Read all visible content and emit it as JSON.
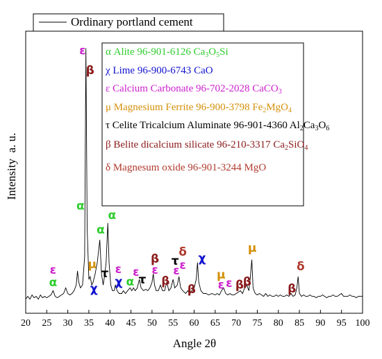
{
  "chart_data": {
    "type": "line",
    "xlabel": "Angle 2θ",
    "ylabel": "Intensity  a. u.",
    "xlim": [
      20,
      100
    ],
    "xticks": [
      20,
      25,
      30,
      35,
      40,
      45,
      50,
      55,
      60,
      65,
      70,
      75,
      80,
      85,
      90,
      95,
      100
    ],
    "ylim": [
      0,
      100
    ],
    "x": [
      20,
      20.5,
      21,
      21.5,
      22,
      22.5,
      23,
      23.5,
      24,
      24.5,
      25,
      25.5,
      26,
      26.5,
      27,
      27.5,
      28,
      28.5,
      29,
      29.5,
      30,
      30.5,
      31,
      31.5,
      32,
      32.3,
      32.6,
      33,
      33.5,
      34,
      34.3,
      34.6,
      35,
      35.3,
      35.7,
      36,
      36.5,
      37,
      37.3,
      37.6,
      38,
      38.4,
      38.8,
      39.1,
      39.5,
      39.8,
      40.2,
      40.6,
      41,
      41.3,
      41.7,
      42.2,
      42.8,
      43.2,
      43.7,
      44.2,
      44.8,
      45.2,
      45.6,
      46,
      46.5,
      47,
      47.4,
      48,
      48.5,
      49,
      49.5,
      50,
      50.3,
      50.6,
      51,
      51.5,
      52,
      52.5,
      53,
      53.5,
      54,
      54.5,
      55,
      55.4,
      56,
      56.4,
      56.8,
      57.3,
      58,
      58.5,
      59,
      59.5,
      60,
      60.5,
      60.8,
      61.1,
      61.6,
      62.2,
      62.8,
      63.5,
      64.2,
      65,
      65.5,
      66,
      66.5,
      67,
      67.5,
      68,
      68.5,
      69,
      69.5,
      70,
      70.5,
      71,
      71.5,
      72,
      72.5,
      73,
      73.3,
      73.7,
      74,
      74.5,
      75,
      75.5,
      76,
      76.5,
      77,
      77.5,
      78,
      78.5,
      79,
      79.5,
      80,
      80.5,
      81,
      81.5,
      82,
      82.5,
      83,
      83.5,
      84,
      84.4,
      84.7,
      85,
      85.5,
      86,
      86.5,
      87,
      87.5,
      88,
      88.5,
      89,
      89.5,
      90,
      90.5,
      91,
      91.5,
      92,
      92.5,
      93,
      93.5,
      94,
      94.5,
      95,
      95.5,
      96,
      96.5,
      97,
      97.5,
      98,
      98.5,
      99,
      99.5,
      100
    ],
    "series": [
      {
        "name": "Ordinary portland cement",
        "color": "#000000",
        "values": [
          5,
          6,
          5,
          6.5,
          5.5,
          6,
          5,
          6.5,
          5.5,
          6,
          5.5,
          6,
          6.5,
          8,
          6,
          5.5,
          6,
          6.5,
          7,
          9,
          7,
          6.5,
          7,
          8,
          10,
          15,
          11,
          9,
          10,
          20,
          94,
          30,
          12,
          13,
          10,
          11,
          14,
          18,
          22,
          26,
          14,
          10,
          14,
          18,
          32,
          18,
          10,
          8,
          8,
          10,
          8,
          7,
          7,
          8,
          7,
          8,
          9,
          8,
          9,
          8,
          9,
          12,
          9,
          8,
          8.5,
          8,
          9,
          11,
          14,
          10,
          8,
          8,
          10,
          8,
          8,
          11,
          8,
          9,
          12,
          9,
          10,
          13,
          9,
          8,
          7,
          8,
          7,
          8,
          9,
          12,
          18,
          11,
          8,
          7,
          7,
          6.5,
          7,
          6.5,
          7,
          6.5,
          8,
          9,
          7,
          6.5,
          7,
          6.5,
          6.5,
          7,
          7.5,
          8,
          7,
          9,
          10,
          8,
          12,
          19,
          9,
          7,
          6.5,
          7,
          6.5,
          6,
          7,
          6,
          6.5,
          6,
          6,
          6.5,
          6,
          6.5,
          6,
          6,
          6.5,
          6,
          7,
          6,
          6.5,
          9,
          13,
          7,
          6,
          6.5,
          6,
          6,
          6.5,
          6,
          6,
          5.5,
          6,
          6,
          6.5,
          6,
          5.5,
          6,
          6,
          6.5,
          6,
          6,
          6.5,
          7,
          6,
          6,
          6,
          6.5,
          6,
          6,
          5.5,
          6,
          6,
          6
        ]
      }
    ],
    "phases": [
      {
        "text": "α Alite 96-901-6126 ",
        "color": "#2ecc2e",
        "formula": [
          {
            "el": "Ca",
            "sub": "3"
          },
          {
            "el": "O",
            "sub": "5"
          },
          {
            "el": "Si"
          }
        ]
      },
      {
        "text": "χ Lime 96-900-6743 ",
        "color": "#1010d0",
        "formula": [
          {
            "el": "CaO"
          }
        ]
      },
      {
        "text": "ε Calcium Carbonate 96-702-2028 ",
        "color": "#cc22cc",
        "formula": [
          {
            "el": "CaCO",
            "sub": "3"
          }
        ]
      },
      {
        "text": "μ Magnesium Ferrite  96-900-3798 ",
        "color": "#d4900a",
        "formula": [
          {
            "el": "Fe",
            "sub": "2"
          },
          {
            "el": "MgO",
            "sub": "4"
          }
        ]
      },
      {
        "text": "τ Celite Tricalcium Aluminate 96-901-4360 ",
        "color": "#000000",
        "formula": [
          {
            "el": "Al",
            "sub": "2"
          },
          {
            "el": "Ca",
            "sub": "3"
          },
          {
            "el": "O",
            "sub": "6"
          }
        ]
      },
      {
        "text": "β Belite dicalcium silicate  96-210-3317  ",
        "color": "#8b1a1a",
        "formula": [
          {
            "el": "Ca",
            "sub": "2"
          },
          {
            "el": "SiO",
            "sub": "4"
          }
        ]
      },
      {
        "text": "δ Magnesum oxide 96-901-3244 MgO",
        "color": "#b03a2e",
        "formula": []
      }
    ],
    "annotations": [
      {
        "text": "ε",
        "x": 26.5,
        "y": 15.2,
        "color": "#cc22cc"
      },
      {
        "text": "α",
        "x": 26.5,
        "y": 10.8,
        "color": "#2ecc2e"
      },
      {
        "text": "ε",
        "x": 33.5,
        "y": 93,
        "color": "#cc22cc"
      },
      {
        "text": "β",
        "x": 35.3,
        "y": 86,
        "color": "#8b1a1a"
      },
      {
        "text": "α",
        "x": 33,
        "y": 38,
        "color": "#2ecc2e"
      },
      {
        "text": "α",
        "x": 37.8,
        "y": 29.5,
        "color": "#2ecc2e"
      },
      {
        "text": "α",
        "x": 40.5,
        "y": 34.6,
        "color": "#2ecc2e"
      },
      {
        "text": "μ",
        "x": 35.8,
        "y": 17.2,
        "color": "#d4900a"
      },
      {
        "text": "χ",
        "x": 36.2,
        "y": 8.6,
        "color": "#1010d0"
      },
      {
        "text": "τ",
        "x": 38.8,
        "y": 14,
        "color": "#000000"
      },
      {
        "text": "ε",
        "x": 42,
        "y": 15.5,
        "color": "#cc22cc"
      },
      {
        "text": "χ",
        "x": 42.1,
        "y": 11,
        "color": "#1010d0"
      },
      {
        "text": "α",
        "x": 44.8,
        "y": 11,
        "color": "#2ecc2e"
      },
      {
        "text": "ε",
        "x": 46.2,
        "y": 14.5,
        "color": "#cc22cc"
      },
      {
        "text": "τ",
        "x": 47.7,
        "y": 11.8,
        "color": "#000000"
      },
      {
        "text": "β",
        "x": 50.7,
        "y": 19.2,
        "color": "#8b1a1a"
      },
      {
        "text": "ε",
        "x": 50.7,
        "y": 15.2,
        "color": "#cc22cc"
      },
      {
        "text": "β",
        "x": 53.2,
        "y": 11.3,
        "color": "#8b1a1a"
      },
      {
        "text": "τ",
        "x": 55.5,
        "y": 18.4,
        "color": "#000000"
      },
      {
        "text": "ε",
        "x": 55.8,
        "y": 15,
        "color": "#cc22cc"
      },
      {
        "text": "ε",
        "x": 57.3,
        "y": 17,
        "color": "#cc22cc"
      },
      {
        "text": "δ",
        "x": 57.3,
        "y": 21.6,
        "color": "#b03a2e"
      },
      {
        "text": "β",
        "x": 59.4,
        "y": 8.4,
        "color": "#8b1a1a"
      },
      {
        "text": "χ",
        "x": 61.9,
        "y": 19.4,
        "color": "#1010d0"
      },
      {
        "text": "μ",
        "x": 66.4,
        "y": 13.5,
        "color": "#d4900a"
      },
      {
        "text": "ε",
        "x": 66.4,
        "y": 10,
        "color": "#cc22cc"
      },
      {
        "text": "ε",
        "x": 68.3,
        "y": 10.6,
        "color": "#cc22cc"
      },
      {
        "text": "β",
        "x": 70.8,
        "y": 10,
        "color": "#8b1a1a"
      },
      {
        "text": "β",
        "x": 72.6,
        "y": 11,
        "color": "#8b1a1a"
      },
      {
        "text": "μ",
        "x": 73.8,
        "y": 23,
        "color": "#d4900a"
      },
      {
        "text": "β",
        "x": 83.2,
        "y": 8.6,
        "color": "#8b1a1a"
      },
      {
        "text": "δ",
        "x": 85.3,
        "y": 16.5,
        "color": "#b03a2e"
      }
    ]
  }
}
